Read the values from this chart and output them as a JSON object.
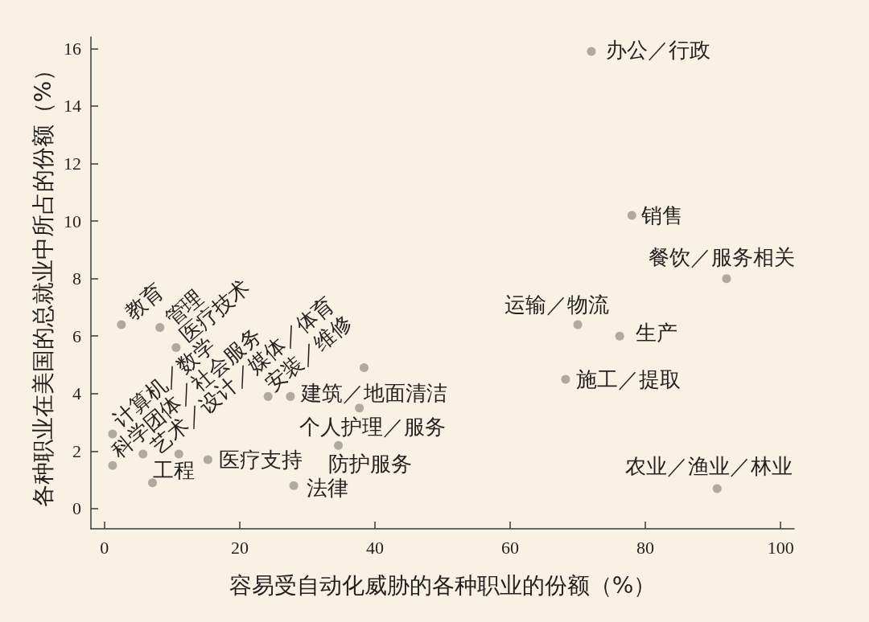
{
  "chart_data": {
    "type": "scatter",
    "xlabel": "容易受自动化威胁的各种职业的份额（%）",
    "ylabel": "各种职业在美国的总就业中所占的份额（%）",
    "x": [
      72.0,
      78.0,
      92.0,
      70.0,
      76.2,
      68.2,
      90.6,
      2.5,
      8.2,
      10.6,
      1.2,
      1.2,
      5.7,
      7.1,
      15.3,
      24.2,
      27.5,
      37.7,
      34.6,
      28.0,
      11.0,
      38.4
    ],
    "values": [
      15.9,
      10.2,
      8.0,
      6.4,
      6.0,
      4.5,
      0.7,
      6.4,
      6.3,
      5.6,
      2.6,
      1.5,
      1.9,
      0.9,
      1.7,
      3.9,
      3.9,
      3.5,
      2.2,
      0.8,
      1.9,
      4.9
    ],
    "color": "#9c978f",
    "marker": "circle",
    "xlim": [
      -2,
      102
    ],
    "xticks": [
      0,
      20,
      40,
      60,
      80,
      100
    ],
    "ylim": [
      -0.7,
      16.4
    ],
    "yticks": [
      0,
      2,
      4,
      6,
      8,
      10,
      12,
      14,
      16
    ],
    "annotations": [
      {
        "text": "办公／行政",
        "x": 72.0,
        "y": 15.9
      },
      {
        "text": "销售",
        "x": 78.0,
        "y": 10.2
      },
      {
        "text": "餐饮／服务相关",
        "x": 92.0,
        "y": 8.0
      },
      {
        "text": "运输／物流",
        "x": 70.0,
        "y": 6.4
      },
      {
        "text": "生产",
        "x": 76.2,
        "y": 6.0
      },
      {
        "text": "施工／提取",
        "x": 68.2,
        "y": 4.5
      },
      {
        "text": "农业／渔业／林业",
        "x": 90.6,
        "y": 0.7
      },
      {
        "text": "教育",
        "x": 2.5,
        "y": 6.4
      },
      {
        "text": "管理",
        "x": 8.2,
        "y": 6.3
      },
      {
        "text": "医疗技术",
        "x": 10.6,
        "y": 5.6
      },
      {
        "text": "计算机／数学",
        "x": 1.2,
        "y": 2.6
      },
      {
        "text": "科学团体／社会服务",
        "x": 1.2,
        "y": 1.5
      },
      {
        "text": "艺术／设计／媒体／体育",
        "x": 5.7,
        "y": 1.9
      },
      {
        "text": "工程",
        "x": 7.1,
        "y": 0.9
      },
      {
        "text": "医疗支持",
        "x": 15.3,
        "y": 1.7
      },
      {
        "text": "安装／维修",
        "x": 24.2,
        "y": 3.9
      },
      {
        "text": "建筑／地面清洁",
        "x": 27.5,
        "y": 3.9
      },
      {
        "text": "个人护理／服务",
        "x": 37.7,
        "y": 3.5
      },
      {
        "text": "防护服务",
        "x": 34.6,
        "y": 2.2
      },
      {
        "text": "法律",
        "x": 28.0,
        "y": 0.8
      }
    ]
  }
}
